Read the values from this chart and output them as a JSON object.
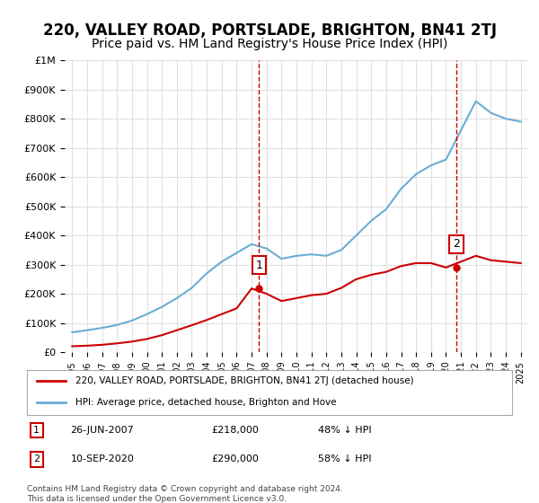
{
  "title": "220, VALLEY ROAD, PORTSLADE, BRIGHTON, BN41 2TJ",
  "subtitle": "Price paid vs. HM Land Registry's House Price Index (HPI)",
  "title_fontsize": 12,
  "subtitle_fontsize": 10,
  "hpi_color": "#6aaed6",
  "price_color": "#cc0000",
  "marker1_date_idx": 12.5,
  "marker2_date_idx": 25.5,
  "sale1_label": "1",
  "sale2_label": "2",
  "sale1_info": "26-JUN-2007        £218,000        48% ↓ HPI",
  "sale2_info": "10-SEP-2020        £290,000        58% ↓ HPI",
  "legend_line1": "220, VALLEY ROAD, PORTSLADE, BRIGHTON, BN41 2TJ (detached house)",
  "legend_line2": "HPI: Average price, detached house, Brighton and Hove",
  "footer": "Contains HM Land Registry data © Crown copyright and database right 2024.\nThis data is licensed under the Open Government Licence v3.0.",
  "ylim": [
    0,
    1000000
  ],
  "hpi_x": [
    1995,
    1996,
    1997,
    1998,
    1999,
    2000,
    2001,
    2002,
    2003,
    2004,
    2005,
    2006,
    2007,
    2008,
    2009,
    2010,
    2011,
    2012,
    2013,
    2014,
    2015,
    2016,
    2017,
    2018,
    2019,
    2020,
    2021,
    2022,
    2023,
    2024,
    2025
  ],
  "hpi_y": [
    68000,
    75000,
    83000,
    93000,
    108000,
    130000,
    155000,
    185000,
    220000,
    270000,
    310000,
    340000,
    370000,
    355000,
    320000,
    330000,
    335000,
    330000,
    350000,
    400000,
    450000,
    490000,
    560000,
    610000,
    640000,
    660000,
    760000,
    860000,
    820000,
    800000,
    790000
  ],
  "price_x": [
    1995,
    1996,
    1997,
    1998,
    1999,
    2000,
    2001,
    2002,
    2003,
    2004,
    2005,
    2006,
    2007,
    2008,
    2009,
    2010,
    2011,
    2012,
    2013,
    2014,
    2015,
    2016,
    2017,
    2018,
    2019,
    2020,
    2021,
    2022,
    2023,
    2024,
    2025
  ],
  "price_y": [
    20000,
    22000,
    25000,
    30000,
    36000,
    45000,
    58000,
    75000,
    92000,
    110000,
    130000,
    150000,
    218000,
    200000,
    175000,
    185000,
    195000,
    200000,
    220000,
    250000,
    265000,
    275000,
    295000,
    305000,
    305000,
    290000,
    310000,
    330000,
    315000,
    310000,
    305000
  ],
  "sale1_x": 2007.5,
  "sale1_y": 218000,
  "sale2_x": 2020.7,
  "sale2_y": 290000,
  "xticks": [
    1995,
    1996,
    1997,
    1998,
    1999,
    2000,
    2001,
    2002,
    2003,
    2004,
    2005,
    2006,
    2007,
    2008,
    2009,
    2010,
    2011,
    2012,
    2013,
    2014,
    2015,
    2016,
    2017,
    2018,
    2019,
    2020,
    2021,
    2022,
    2023,
    2024,
    2025
  ],
  "background_color": "#ffffff",
  "grid_color": "#e0e0e0"
}
